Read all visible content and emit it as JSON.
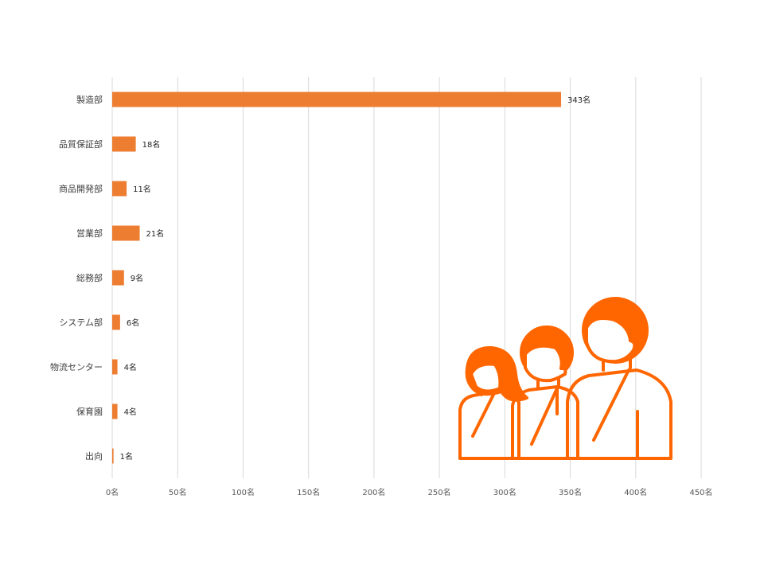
{
  "chart_data": {
    "type": "bar",
    "orientation": "horizontal",
    "categories": [
      "製造部",
      "品質保証部",
      "商品開発部",
      "営業部",
      "総務部",
      "システム部",
      "物流センター",
      "保育園",
      "出向"
    ],
    "values": [
      343,
      18,
      11,
      21,
      9,
      6,
      4,
      4,
      1
    ],
    "value_labels": [
      "343名",
      "18名",
      "11名",
      "21名",
      "9名",
      "6名",
      "4名",
      "4名",
      "1名"
    ],
    "x_ticks": [
      0,
      50,
      100,
      150,
      200,
      250,
      300,
      350,
      400,
      450
    ],
    "x_tick_labels": [
      "0名",
      "50名",
      "100名",
      "150名",
      "200名",
      "250名",
      "300名",
      "350名",
      "400名",
      "450名"
    ],
    "xlim": [
      0,
      450
    ],
    "grid": "vertical",
    "title": "",
    "xlabel": "",
    "ylabel": "",
    "colors": {
      "bar": "#ED7D31",
      "icon": "#FF6600",
      "grid": "#D9D9D9"
    }
  },
  "decoration": {
    "icon": "people-group-icon"
  }
}
